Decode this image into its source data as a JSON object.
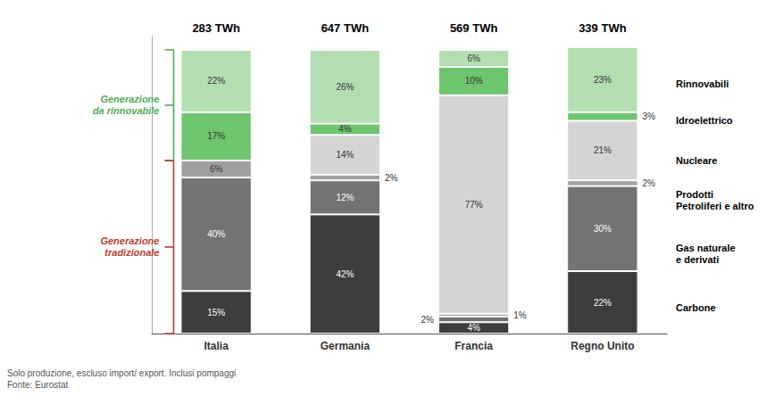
{
  "chart_data": {
    "type": "bar",
    "stacked": true,
    "data_labels": true,
    "grid": false,
    "tick_labels": "x",
    "categories": [
      "Italia",
      "Germania",
      "Francia",
      "Regno Unito"
    ],
    "ylim": [
      0,
      105
    ],
    "series": [
      {
        "name": "Carbone",
        "color": "#3d3d3d",
        "values": [
          15,
          42,
          4,
          22
        ],
        "value_labels": [
          "15%",
          "42%",
          "4%",
          "22%"
        ]
      },
      {
        "name": "Gas naturale\ne derivati",
        "color": "#737373",
        "values": [
          40,
          12,
          2,
          30
        ],
        "value_labels": [
          "40%",
          "12%",
          "2%",
          "30%"
        ]
      },
      {
        "name": "Prodotti\nPetroliferi e altro",
        "color": "#a0a0a0",
        "values": [
          6,
          2,
          1,
          2
        ],
        "value_labels": [
          "6%",
          "2%",
          "1%",
          "2%"
        ]
      },
      {
        "name": "Nucleare",
        "color": "#d4d4d4",
        "values": [
          0,
          14,
          77,
          21
        ],
        "value_labels": [
          null,
          "14%",
          "77%",
          "21%"
        ]
      },
      {
        "name": "Idroelettrico",
        "color": "#6dc56d",
        "values": [
          17,
          4,
          10,
          3
        ],
        "value_labels": [
          "17%",
          "4%",
          "10%",
          "3%"
        ]
      },
      {
        "name": "Rinnovabili",
        "color": "#b2deb2",
        "values": [
          22,
          26,
          6,
          23
        ],
        "value_labels": [
          "22%",
          "26%",
          "6%",
          "23%"
        ]
      }
    ],
    "annotations": [
      {
        "text": "283 TWh",
        "category": "Italia"
      },
      {
        "text": "647 TWh",
        "category": "Germania"
      },
      {
        "text": "569 TWh",
        "category": "Francia"
      },
      {
        "text": "339 TWh",
        "category": "Regno Unito"
      },
      {
        "text": "Rinnovabili",
        "y": 88
      },
      {
        "text": "Idroelettrico",
        "y": 75
      },
      {
        "text": "Nucleare",
        "y": 61
      },
      {
        "text": "Prodotti\nPetroliferi e altro",
        "y": 47
      },
      {
        "text": "Gas naturale\ne derivati",
        "y": 28
      },
      {
        "text": "Carbone",
        "y": 9
      },
      {
        "text": "Generazione\nda rinnovabile",
        "color": "#4caf50",
        "range": [
          61,
          100
        ]
      },
      {
        "text": "Generazione\ntradizionale",
        "color": "#c0392b",
        "range": [
          0,
          61
        ]
      },
      {
        "text": "Solo produzione, escluso import/ export. Inclusi pompaggi\nFonte: Eurostat"
      }
    ]
  }
}
